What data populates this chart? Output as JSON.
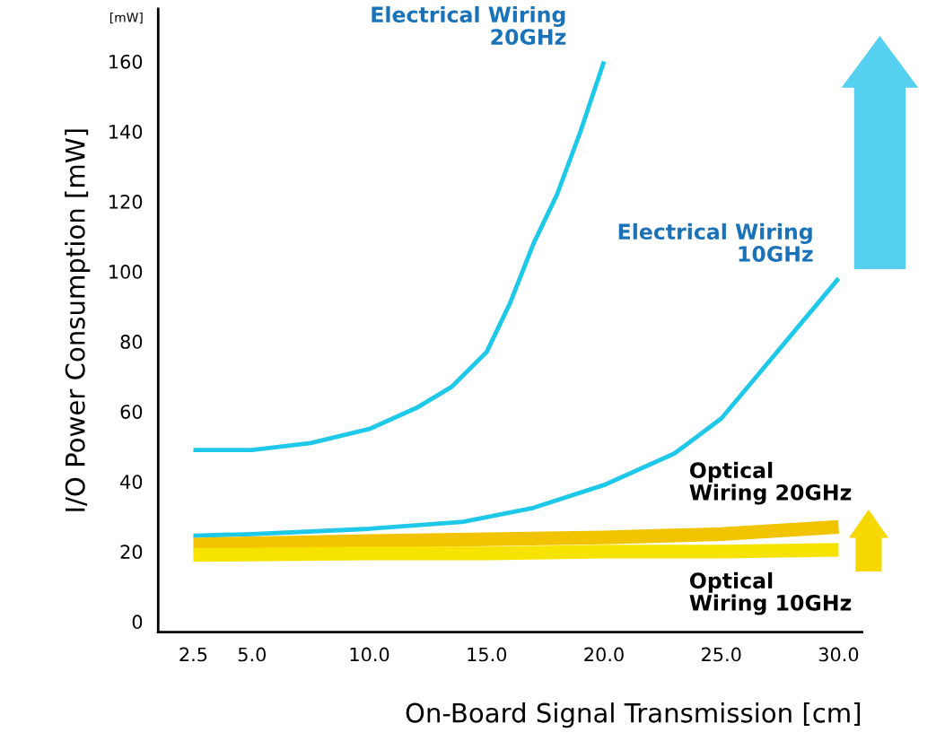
{
  "chart_data": {
    "type": "line",
    "xlabel": "On-Board Signal Transmission [cm]",
    "ylabel": "I/O Power Consumption [mW]",
    "xlim": [
      1,
      31
    ],
    "ylim": [
      -3,
      175
    ],
    "xticks": [
      {
        "value": 2.5,
        "label": "2.5"
      },
      {
        "value": 5,
        "label": "5.0"
      },
      {
        "value": 10,
        "label": "10.0"
      },
      {
        "value": 15,
        "label": "15.0"
      },
      {
        "value": 20,
        "label": "20.0"
      },
      {
        "value": 25,
        "label": "25.0"
      },
      {
        "value": 30,
        "label": "30.0"
      }
    ],
    "yticks": [
      0,
      20,
      40,
      60,
      80,
      100,
      120,
      140,
      160
    ],
    "grid": false,
    "legend": false,
    "marker": "none",
    "line_style": "solid",
    "annotations": [
      "[mW]"
    ],
    "series": [
      {
        "name": "Electrical Wiring\n20GHz",
        "color": "#1ec8e8",
        "x": [
          2.5,
          5,
          7.5,
          10,
          12,
          13.5,
          15,
          16,
          17,
          18,
          19,
          20
        ],
        "values": [
          49,
          49,
          51,
          55,
          61,
          67,
          77,
          91,
          108,
          122,
          140,
          160
        ]
      },
      {
        "name": "Electrical Wiring\n10GHz",
        "color": "#1ec8e8",
        "x": [
          2.5,
          5,
          10,
          14,
          17,
          20,
          23,
          25,
          26.5,
          28,
          29,
          30
        ],
        "values": [
          24.5,
          25,
          26.5,
          28.5,
          32.5,
          39,
          48,
          58,
          70,
          82,
          90,
          98
        ]
      },
      {
        "name": "Optical\nWiring 20GHz",
        "color": "#f2c400",
        "x": [
          2.5,
          10,
          15,
          20,
          25,
          30
        ],
        "values": [
          22,
          23,
          23.5,
          24,
          25,
          27
        ]
      },
      {
        "name": "Optical\nWiring 10GHz",
        "color": "#f6e400",
        "x": [
          2.5,
          10,
          15,
          20,
          25,
          30
        ],
        "values": [
          19,
          19.5,
          19.5,
          20,
          20,
          20.5
        ]
      }
    ]
  }
}
